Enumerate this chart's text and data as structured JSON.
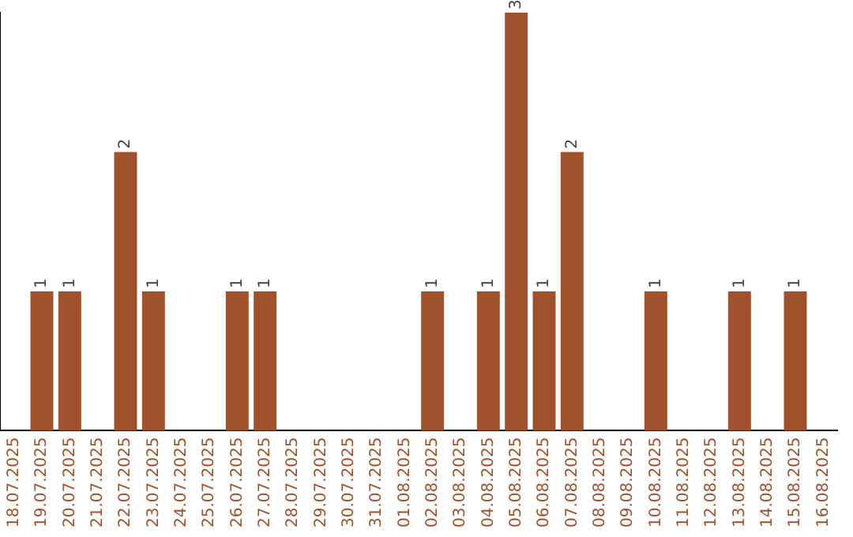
{
  "chart_data": {
    "type": "bar",
    "categories": [
      "18.07.2025",
      "19.07.2025",
      "20.07.2025",
      "21.07.2025",
      "22.07.2025",
      "23.07.2025",
      "24.07.2025",
      "25.07.2025",
      "26.07.2025",
      "27.07.2025",
      "28.07.2025",
      "29.07.2025",
      "30.07.2025",
      "31.07.2025",
      "01.08.2025",
      "02.08.2025",
      "03.08.2025",
      "04.08.2025",
      "05.08.2025",
      "06.08.2025",
      "07.08.2025",
      "08.08.2025",
      "09.08.2025",
      "10.08.2025",
      "11.08.2025",
      "12.08.2025",
      "13.08.2025",
      "14.08.2025",
      "15.08.2025",
      "16.08.2025"
    ],
    "values": [
      0,
      1,
      1,
      0,
      2,
      1,
      0,
      0,
      1,
      1,
      0,
      0,
      0,
      0,
      0,
      1,
      0,
      1,
      3,
      1,
      2,
      0,
      0,
      1,
      0,
      0,
      1,
      0,
      1,
      0
    ],
    "value_labels": [
      null,
      "1",
      "1",
      null,
      "2",
      "1",
      null,
      null,
      "1",
      "1",
      null,
      null,
      null,
      null,
      null,
      "1",
      null,
      "1",
      "3",
      "1",
      "2",
      null,
      null,
      "1",
      null,
      null,
      "1",
      null,
      "1",
      null
    ],
    "color": "#a0522d",
    "tick_labels": "x",
    "grid": false,
    "legend": false
  }
}
